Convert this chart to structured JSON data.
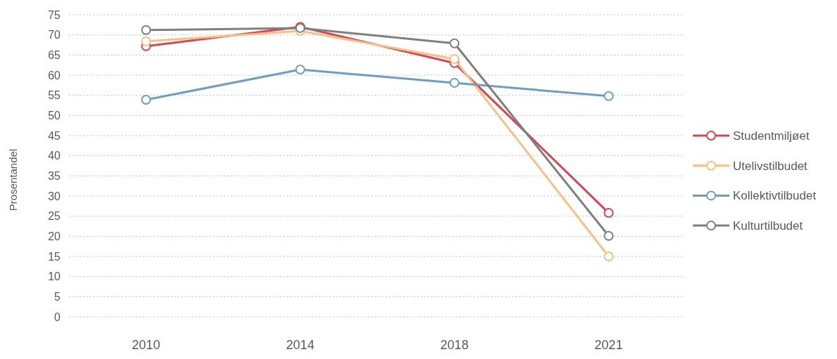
{
  "chart_data": {
    "type": "line",
    "ylabel": "Prosentandel",
    "categories": [
      "2010",
      "2014",
      "2018",
      "2021"
    ],
    "series": [
      {
        "name": "Studentmiljøet",
        "color": "#d9444f",
        "values": [
          67.2,
          72,
          63,
          25.8
        ]
      },
      {
        "name": "Utelivstilbudet",
        "color": "#f8bf87",
        "values": [
          68.4,
          71,
          64,
          15
        ]
      },
      {
        "name": "Kollektivtilbudet",
        "color": "#6b9dc8",
        "values": [
          53.9,
          61.4,
          58.1,
          54.8
        ]
      },
      {
        "name": "Kulturtilbudet",
        "color": "#7f7f7f",
        "values": [
          71.2,
          71.7,
          67.9,
          20.1
        ]
      }
    ],
    "ylim": [
      0,
      75
    ],
    "yticks": [
      0,
      5,
      10,
      15,
      20,
      25,
      30,
      35,
      40,
      45,
      50,
      55,
      60,
      65,
      70,
      75
    ],
    "grid": "y",
    "legend": "right",
    "marker": "circle",
    "line_style": "solid"
  }
}
